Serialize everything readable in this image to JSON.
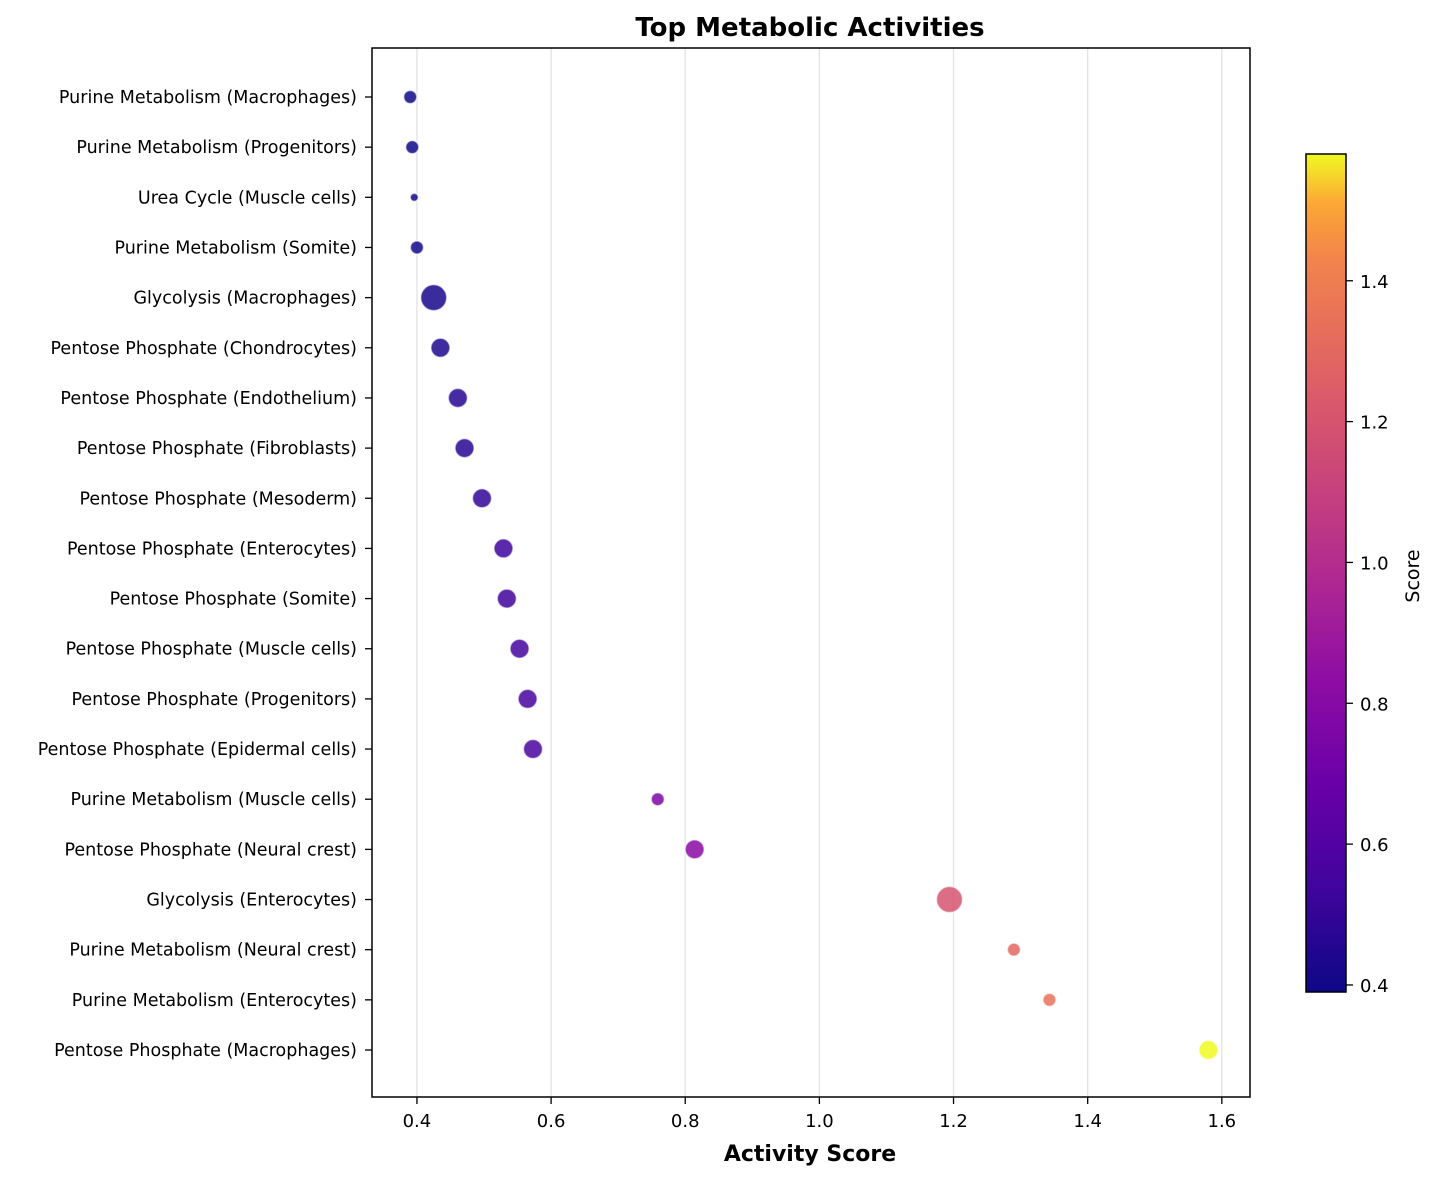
{
  "chart_data": {
    "type": "scatter",
    "title": "Top Metabolic Activities",
    "xlabel": "Activity Score",
    "ylabel": "",
    "xlim": [
      0.333,
      1.642
    ],
    "xticks": [
      0.4,
      0.6,
      0.8,
      1.0,
      1.2,
      1.4,
      1.6
    ],
    "xtick_labels": [
      "0.4",
      "0.6",
      "0.8",
      "1.0",
      "1.2",
      "1.4",
      "1.6"
    ],
    "grid": "vertical",
    "colorbar": {
      "label": "Score",
      "colormap": "plasma",
      "range": [
        0.39,
        1.58
      ],
      "ticks": [
        0.4,
        0.6,
        0.8,
        1.0,
        1.2,
        1.4
      ],
      "tick_labels": [
        "0.4",
        "0.6",
        "0.8",
        "1.0",
        "1.2",
        "1.4"
      ]
    },
    "points": [
      {
        "label": "Purine Metabolism (Macrophages)",
        "x": 0.39,
        "size": "small"
      },
      {
        "label": "Purine Metabolism (Progenitors)",
        "x": 0.393,
        "size": "small"
      },
      {
        "label": "Urea Cycle (Muscle cells)",
        "x": 0.396,
        "size": "tiny"
      },
      {
        "label": "Purine Metabolism (Somite)",
        "x": 0.4,
        "size": "small"
      },
      {
        "label": "Glycolysis (Macrophages)",
        "x": 0.425,
        "size": "large"
      },
      {
        "label": "Pentose Phosphate (Chondrocytes)",
        "x": 0.435,
        "size": "medium"
      },
      {
        "label": "Pentose Phosphate (Endothelium)",
        "x": 0.461,
        "size": "medium"
      },
      {
        "label": "Pentose Phosphate (Fibroblasts)",
        "x": 0.471,
        "size": "medium"
      },
      {
        "label": "Pentose Phosphate (Mesoderm)",
        "x": 0.497,
        "size": "medium"
      },
      {
        "label": "Pentose Phosphate (Enterocytes)",
        "x": 0.529,
        "size": "medium"
      },
      {
        "label": "Pentose Phosphate (Somite)",
        "x": 0.534,
        "size": "medium"
      },
      {
        "label": "Pentose Phosphate (Muscle cells)",
        "x": 0.553,
        "size": "medium"
      },
      {
        "label": "Pentose Phosphate (Progenitors)",
        "x": 0.565,
        "size": "medium"
      },
      {
        "label": "Pentose Phosphate (Epidermal cells)",
        "x": 0.573,
        "size": "medium"
      },
      {
        "label": "Purine Metabolism (Muscle cells)",
        "x": 0.759,
        "size": "small"
      },
      {
        "label": "Pentose Phosphate (Neural crest)",
        "x": 0.814,
        "size": "medium"
      },
      {
        "label": "Glycolysis (Enterocytes)",
        "x": 1.194,
        "size": "large"
      },
      {
        "label": "Purine Metabolism (Neural crest)",
        "x": 1.29,
        "size": "small"
      },
      {
        "label": "Purine Metabolism (Enterocytes)",
        "x": 1.343,
        "size": "small"
      },
      {
        "label": "Pentose Phosphate (Macrophages)",
        "x": 1.58,
        "size": "medium"
      }
    ]
  }
}
